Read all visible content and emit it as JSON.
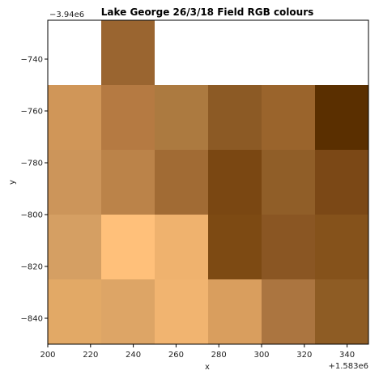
{
  "chart_data": {
    "type": "heatmap",
    "title": "Lake George 26/3/18 Field RGB colours",
    "xlabel": "x",
    "ylabel": "y",
    "x_offset_label": "+1.583e6",
    "y_offset_label": "−3.94e6",
    "xlim": [
      200,
      350
    ],
    "ylim": [
      -850,
      -725
    ],
    "x_ticks": [
      200,
      220,
      240,
      260,
      280,
      300,
      320,
      340
    ],
    "y_ticks": [
      -740,
      -760,
      -780,
      -800,
      -820,
      -840
    ],
    "x_tick_labels": [
      "200",
      "220",
      "240",
      "260",
      "280",
      "300",
      "320",
      "340"
    ],
    "y_tick_labels": [
      "−740",
      "−760",
      "−780",
      "−800",
      "−820",
      "−840"
    ],
    "column_edges": [
      200,
      225,
      250,
      275,
      300,
      325,
      350
    ],
    "row_edges": [
      -725,
      -750,
      -775,
      -800,
      -825,
      -850
    ],
    "cells": [
      [
        null,
        "#9a6530",
        null,
        null,
        null,
        null
      ],
      [
        "#d09658",
        "#b57a42",
        "#ac7a40",
        "#8c5a25",
        "#9a642c",
        "#5a2f00"
      ],
      [
        "#cc955a",
        "#bb8349",
        "#a16b34",
        "#7a4712",
        "#905e28",
        "#7b4816"
      ],
      [
        "#d59f63",
        "#ffc07a",
        "#efb26e",
        "#7d4a13",
        "#8a5623",
        "#85521b"
      ],
      [
        "#e2a966",
        "#dda566",
        "#f1b470",
        "#d99e5e",
        "#ab7540",
        "#8e5c24"
      ]
    ],
    "grid": false,
    "legend": "none"
  }
}
